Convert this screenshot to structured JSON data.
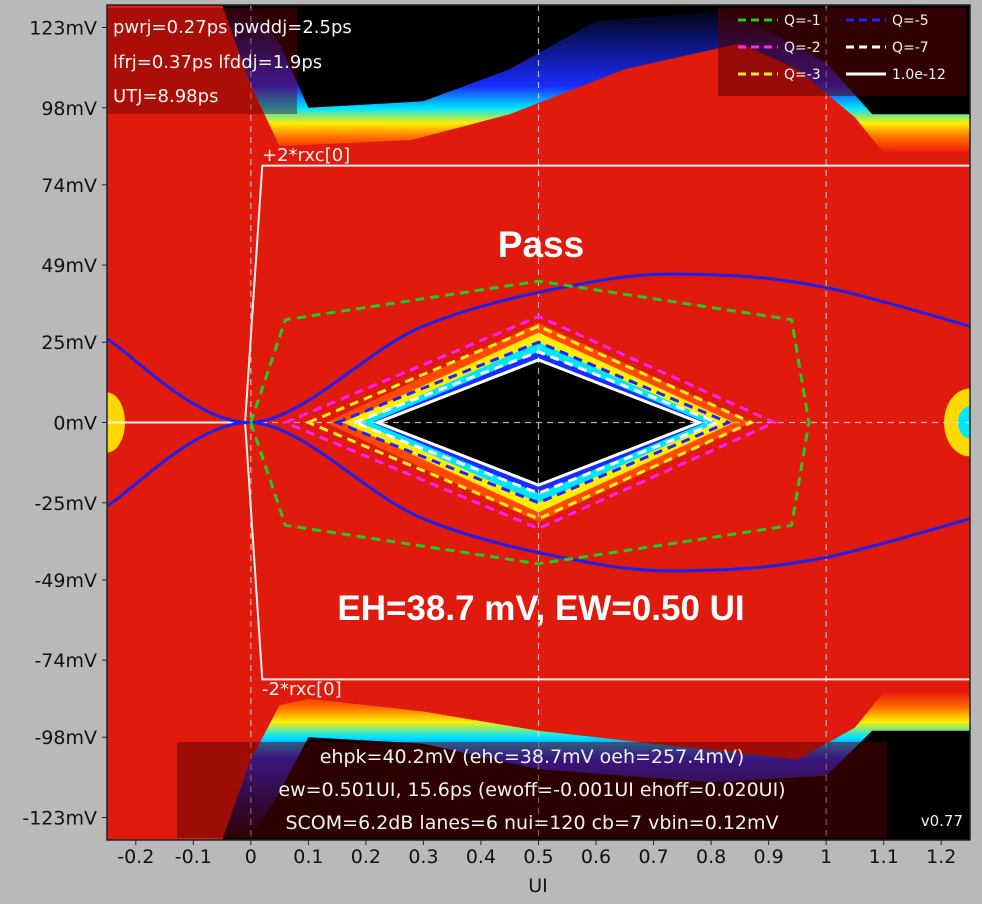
{
  "chart_data": {
    "type": "heatmap",
    "title": "",
    "xlabel": "UI",
    "ylabel": "",
    "xlim": [
      -0.25,
      1.25
    ],
    "ylim": [
      -130,
      130
    ],
    "x_ticks": [
      "-0.2",
      "-0.1",
      "0",
      "0.1",
      "0.2",
      "0.3",
      "0.4",
      "0.5",
      "0.6",
      "0.7",
      "0.8",
      "0.9",
      "1",
      "1.1",
      "1.2"
    ],
    "y_ticks": [
      "123mV",
      "98mV",
      "74mV",
      "49mV",
      "25mV",
      "0mV",
      "-25mV",
      "-49mV",
      "-74mV",
      "-98mV",
      "-123mV"
    ],
    "y_tick_values": [
      123,
      98,
      74,
      49,
      25,
      0,
      -25,
      -49,
      -74,
      -98,
      -123
    ],
    "jitter_info": [
      "pwrj=0.27ps pwddj=2.5ps",
      "lfrj=0.37ps lfddj=1.9ps",
      "UTJ=8.98ps"
    ],
    "legend": {
      "placement": "top-right",
      "entries": [
        {
          "label": "Q=-1",
          "color": "#22cc22",
          "dashed": true
        },
        {
          "label": "Q=-5",
          "color": "#2222ff",
          "dashed": true
        },
        {
          "label": "Q=-2",
          "color": "#ff22ff",
          "dashed": true
        },
        {
          "label": "Q=-7",
          "color": "#ffffff",
          "dashed": true
        },
        {
          "label": "Q=-3",
          "color": "#ffee22",
          "dashed": true
        },
        {
          "label": "1.0e-12",
          "color": "#ffffff",
          "dashed": false
        }
      ]
    },
    "rxc_labels": {
      "upper": "+2*rxc[0]",
      "lower": "-2*rxc[0]"
    },
    "rxc_level_mV": 80,
    "contours": [
      {
        "name": "Q=-1",
        "color": "#22cc22",
        "points": [
          [
            0.0,
            0
          ],
          [
            0.06,
            32
          ],
          [
            0.5,
            44
          ],
          [
            0.94,
            32
          ],
          [
            0.97,
            0
          ],
          [
            0.94,
            -32
          ],
          [
            0.5,
            -44
          ],
          [
            0.06,
            -32
          ]
        ]
      },
      {
        "name": "Q=-2",
        "color": "#ff22ff",
        "points": [
          [
            0.06,
            0
          ],
          [
            0.5,
            33
          ],
          [
            0.91,
            0
          ],
          [
            0.5,
            -33
          ]
        ]
      },
      {
        "name": "Q=-3",
        "color": "#ffee22",
        "points": [
          [
            0.1,
            0
          ],
          [
            0.5,
            30
          ],
          [
            0.87,
            0
          ],
          [
            0.5,
            -30
          ]
        ]
      },
      {
        "name": "Q=-5",
        "color": "#2222ff",
        "points": [
          [
            0.15,
            0
          ],
          [
            0.5,
            25
          ],
          [
            0.83,
            0
          ],
          [
            0.5,
            -25
          ]
        ]
      },
      {
        "name": "Q=-7",
        "color": "#ffffff",
        "points": [
          [
            0.18,
            0
          ],
          [
            0.5,
            22
          ],
          [
            0.81,
            0
          ],
          [
            0.5,
            -22
          ]
        ]
      },
      {
        "name": "1.0e-12",
        "color": "#ffffff",
        "points": [
          [
            0.22,
            0
          ],
          [
            0.5,
            19.5
          ],
          [
            0.78,
            0
          ],
          [
            0.5,
            -19.5
          ]
        ]
      }
    ],
    "blue_curves": [
      {
        "points": [
          [
            -0.25,
            26
          ],
          [
            0.0,
            0
          ],
          [
            0.3,
            30
          ],
          [
            0.6,
            44
          ],
          [
            0.8,
            46
          ],
          [
            1.0,
            42
          ],
          [
            1.25,
            30
          ]
        ]
      },
      {
        "points": [
          [
            -0.25,
            -26
          ],
          [
            0.0,
            0
          ],
          [
            0.3,
            -30
          ],
          [
            0.6,
            -44
          ],
          [
            0.8,
            -46
          ],
          [
            1.0,
            -42
          ],
          [
            1.25,
            -30
          ]
        ]
      }
    ],
    "mask_lines": [
      {
        "points": [
          [
            -0.25,
            0
          ],
          [
            -0.01,
            0
          ],
          [
            0.02,
            80
          ],
          [
            1.25,
            80
          ]
        ]
      },
      {
        "points": [
          [
            -0.01,
            0
          ],
          [
            0.02,
            -80
          ],
          [
            1.25,
            -80
          ]
        ]
      }
    ],
    "vlines": [
      0.0,
      0.5,
      1.0
    ],
    "pass_text": "Pass",
    "result_text": "EH=38.7 mV, EW=0.50 UI",
    "summary": [
      "ehpk=40.2mV (ehc=38.7mV oeh=257.4mV)",
      "ew=0.501UI, 15.6ps (ewoff=-0.001UI ehoff=0.020UI)",
      "SCOM=6.2dB lanes=6 nui=120 cb=7 vbin=0.12mV"
    ],
    "version": "v0.77"
  }
}
